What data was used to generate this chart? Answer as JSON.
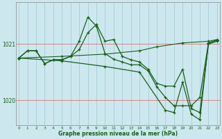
{
  "title": "Graphe pression niveau de la mer (hPa)",
  "bg_color": "#cce8ee",
  "grid_v_color": "#a8ccd4",
  "grid_h_color": "#dd6666",
  "line_color": "#1a5e1a",
  "xlim": [
    -0.3,
    23.3
  ],
  "ylim": [
    1019.55,
    1021.75
  ],
  "yticks": [
    1020.0,
    1021.0
  ],
  "xticks": [
    0,
    1,
    2,
    3,
    4,
    5,
    6,
    7,
    8,
    9,
    10,
    11,
    12,
    13,
    14,
    15,
    16,
    17,
    18,
    19,
    20,
    21,
    22,
    23
  ],
  "series": [
    {
      "x": [
        0,
        1,
        2,
        3,
        4,
        5,
        6,
        7,
        8,
        9,
        10,
        11,
        12,
        13,
        14,
        15,
        16,
        17,
        18,
        19,
        20,
        21,
        22,
        23
      ],
      "y": [
        1020.75,
        1020.88,
        1020.88,
        1020.65,
        1020.72,
        1020.72,
        1020.78,
        1020.9,
        1021.2,
        1021.35,
        1021.05,
        1021.08,
        1020.78,
        1020.72,
        1020.68,
        1020.55,
        1020.3,
        1020.25,
        1020.25,
        1020.55,
        1019.85,
        1019.78,
        1021.0,
        1021.05
      ],
      "lw": 0.9
    },
    {
      "x": [
        0,
        5,
        10,
        14,
        16,
        19,
        22,
        23
      ],
      "y": [
        1020.75,
        1020.78,
        1020.82,
        1020.88,
        1020.95,
        1021.02,
        1021.05,
        1021.08
      ],
      "lw": 0.8
    },
    {
      "x": [
        0,
        1,
        2,
        3,
        4,
        5,
        6,
        7,
        8,
        9,
        10,
        11,
        12,
        13,
        14,
        15,
        16,
        17,
        18,
        19,
        20,
        21,
        22,
        23
      ],
      "y": [
        1020.75,
        1020.88,
        1020.88,
        1020.65,
        1020.72,
        1020.72,
        1020.78,
        1021.05,
        1021.48,
        1021.32,
        1020.83,
        1020.73,
        1020.68,
        1020.63,
        1020.63,
        1020.52,
        1020.24,
        1020.05,
        1019.9,
        1019.9,
        1019.9,
        1020.05,
        1021.02,
        1021.07
      ],
      "lw": 0.9
    },
    {
      "x": [
        0,
        5,
        10,
        14,
        17,
        18,
        19,
        20,
        21,
        22,
        23
      ],
      "y": [
        1020.75,
        1020.7,
        1020.6,
        1020.5,
        1019.82,
        1019.78,
        1020.32,
        1019.75,
        1019.65,
        1021.02,
        1021.07
      ],
      "lw": 0.9
    }
  ]
}
